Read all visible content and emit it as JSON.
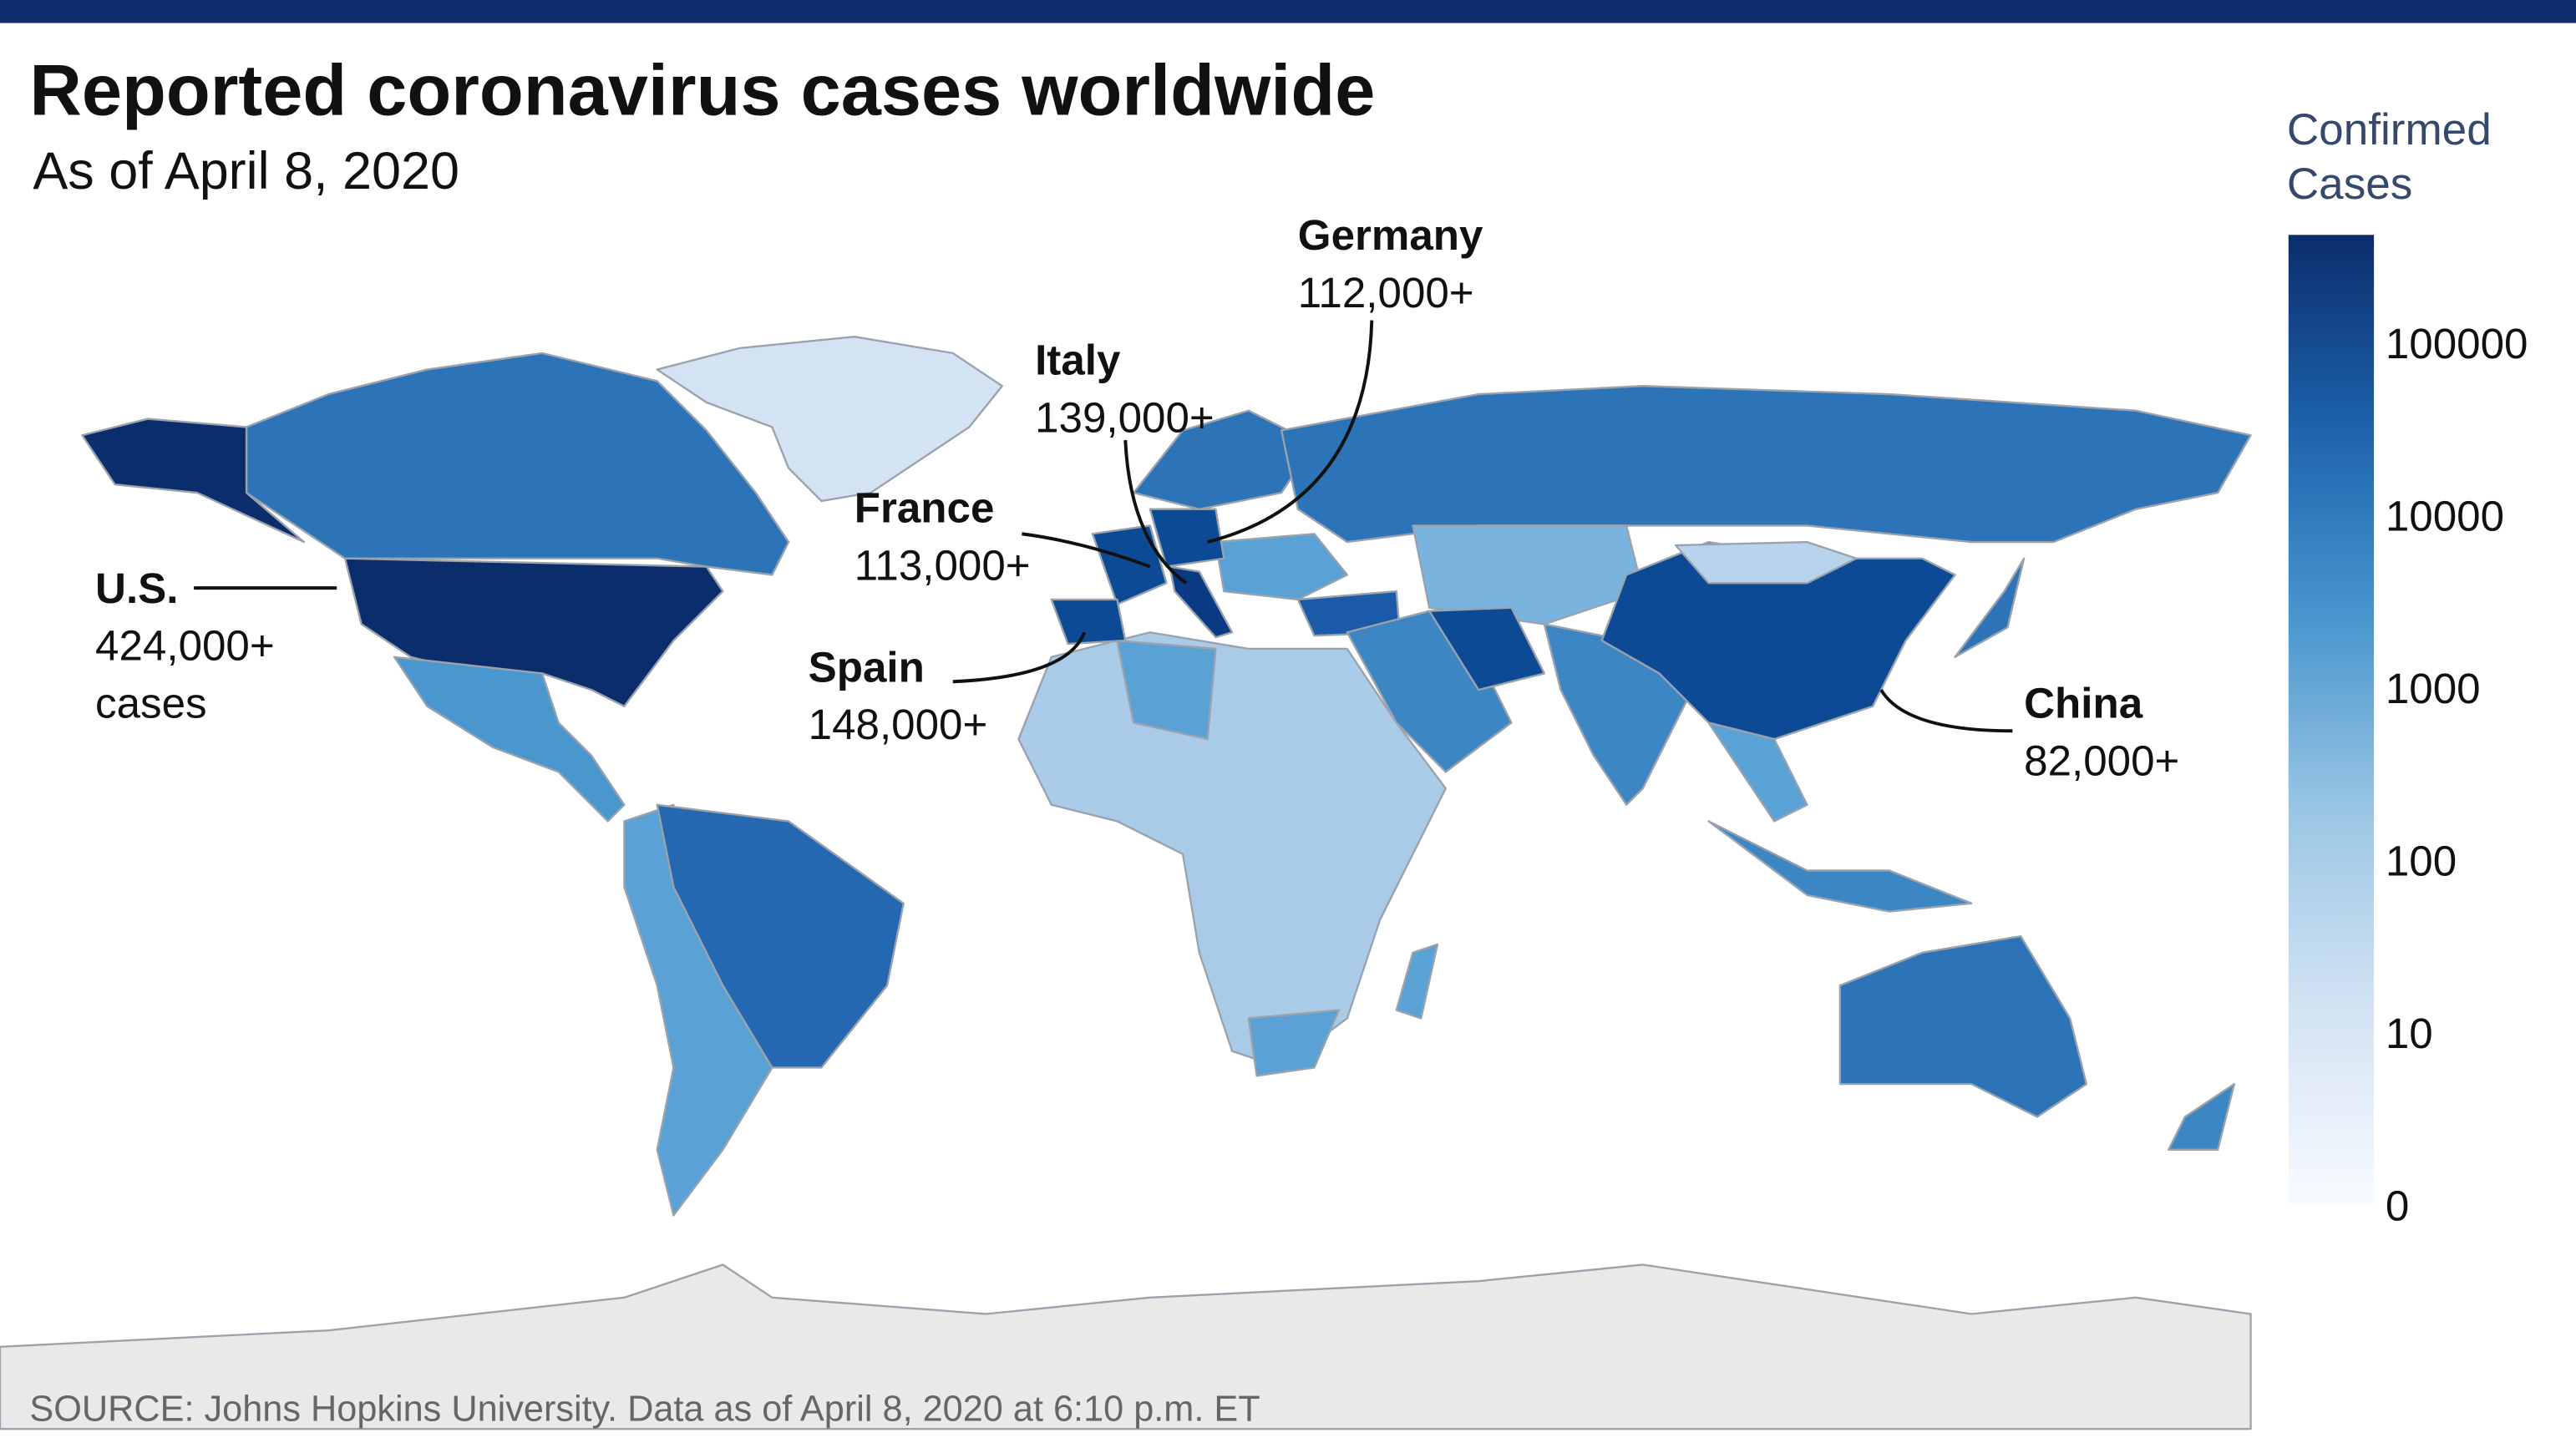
{
  "header": {
    "title": "Reported coronavirus cases worldwide",
    "subtitle": "As of April 8, 2020"
  },
  "annotations": [
    {
      "label": "U.S.",
      "value": "424,000+",
      "note": "cases"
    },
    {
      "label": "Spain",
      "value": "148,000+"
    },
    {
      "label": "Italy",
      "value": "139,000+"
    },
    {
      "label": "France",
      "value": "113,000+"
    },
    {
      "label": "Germany",
      "value": "112,000+"
    },
    {
      "label": "China",
      "value": "82,000+"
    }
  ],
  "legend": {
    "title_lines": [
      "Confirmed",
      "Cases"
    ],
    "ticks": [
      0,
      10,
      100,
      1000,
      10000,
      100000
    ]
  },
  "source": "SOURCE: Johns Hopkins University. Data as of April 8, 2020 at 6:10 p.m. ET"
}
